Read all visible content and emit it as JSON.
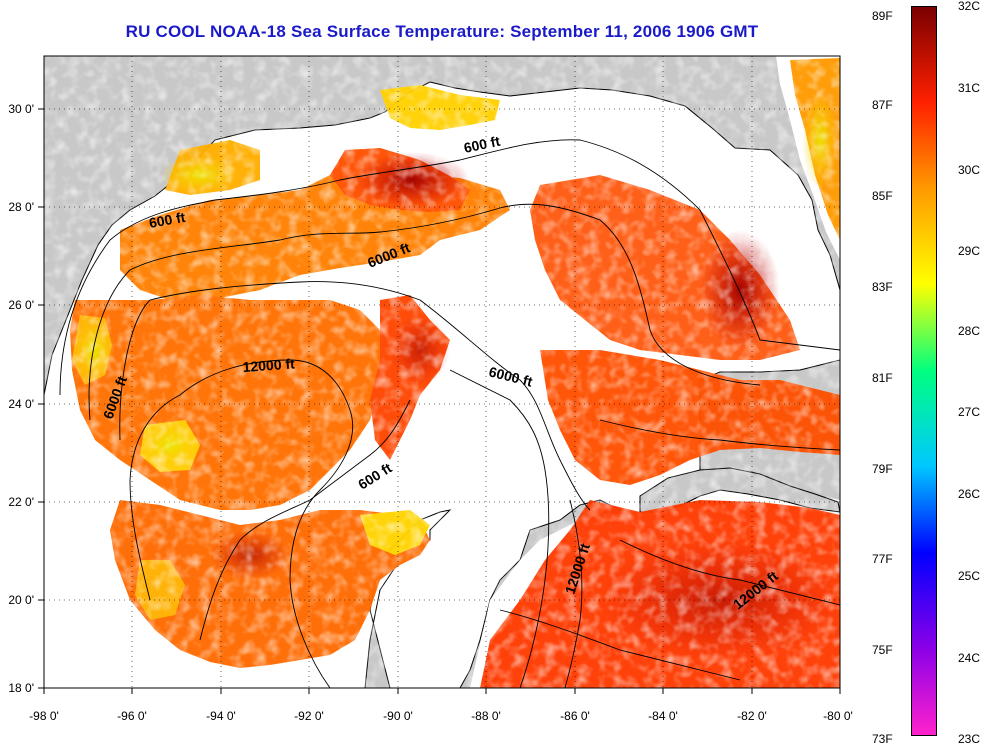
{
  "title": "RU COOL  NOAA-18  Sea Surface Temperature:  September 11, 2006 1906 GMT",
  "map": {
    "lon_ticks": [
      "-98 0'",
      "-96 0'",
      "-94 0'",
      "-92 0'",
      "-90 0'",
      "-88 0'",
      "-86 0'",
      "-84 0'",
      "-82 0'",
      "-80 0'"
    ],
    "lat_ticks": [
      "30 0'",
      "28 0'",
      "26 0'",
      "24 0'",
      "22 0'",
      "20 0'",
      "18 0'"
    ],
    "lon_range": [
      -98,
      -80
    ],
    "lat_range": [
      18,
      31
    ],
    "grid": "dotted",
    "colors": {
      "land": "#c8c8c8",
      "no_data": "#ffffff",
      "warm": "#ff4a00",
      "hot": "#b40000",
      "mid": "#ff8c00"
    }
  },
  "contours": [
    {
      "label": "600 ft"
    },
    {
      "label": "600 ft"
    },
    {
      "label": "6000 ft"
    },
    {
      "label": "12000 ft"
    },
    {
      "label": "6000 ft"
    },
    {
      "label": "6000 ft"
    },
    {
      "label": "600 ft"
    },
    {
      "label": "12000 ft"
    },
    {
      "label": "12000 ft"
    }
  ],
  "colorbar": {
    "left_ticks": [
      "89F",
      "87F",
      "85F",
      "83F",
      "81F",
      "79F",
      "77F",
      "75F",
      "73F"
    ],
    "right_ticks": [
      "32C",
      "31C",
      "30C",
      "29C",
      "28C",
      "27C",
      "26C",
      "25C",
      "24C",
      "23C"
    ],
    "range_c": [
      23,
      32
    ],
    "range_f": [
      73,
      89
    ],
    "colors": [
      "#ff22cc",
      "#8a00e8",
      "#0000ff",
      "#00c8ff",
      "#00ff80",
      "#ffff00",
      "#ff9a00",
      "#ff2000",
      "#7a0000"
    ]
  }
}
